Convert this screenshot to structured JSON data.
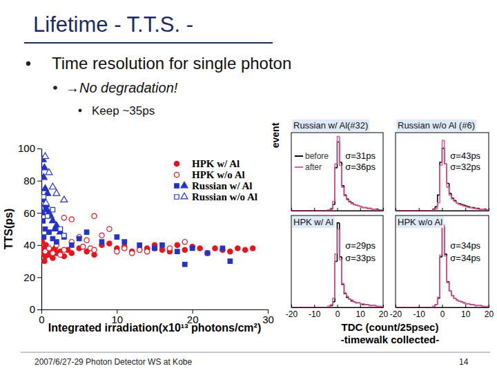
{
  "slide": {
    "title": "Lifetime - T.T.S. -",
    "bullets": [
      "Time resolution for single photon"
    ],
    "sub_bullets": [
      "→No degradation!"
    ],
    "sub_sub_bullets": [
      "Keep ~35ps"
    ],
    "footer": "2007/6/27-29 Photon Detector WS at Kobe",
    "page": 14
  },
  "histogram_axis": {
    "xlabel": "TDC (count/25psec)",
    "note": "-timewalk collected-"
  },
  "chart_data": [
    {
      "type": "scatter",
      "xlabel": "Integrated irradiation(x10¹³ photons/cm²)",
      "ylabel": "TTS(ps)",
      "xlim": [
        0,
        30
      ],
      "ylim": [
        0,
        100
      ],
      "xticks": [
        0,
        10,
        20,
        30
      ],
      "yticks": [
        0,
        20,
        40,
        60,
        80,
        100
      ],
      "grid": false,
      "legend": "upper right",
      "series": [
        {
          "name": "HPK w/ Al",
          "color": "#e8141e",
          "marker": "circle",
          "x": [
            0.1,
            0.2,
            0.3,
            0.4,
            0.5,
            0.6,
            0.8,
            1,
            1.2,
            1.5,
            1.8,
            2,
            2.5,
            3,
            3.5,
            4,
            5,
            6,
            7,
            8,
            9,
            10,
            11,
            12,
            13,
            14,
            15,
            16,
            17,
            18,
            19,
            20,
            21,
            22,
            23,
            24,
            25,
            26,
            27,
            28
          ],
          "values": [
            42,
            35,
            38,
            30,
            33,
            40,
            36,
            34,
            37,
            32,
            38,
            35,
            36,
            33,
            37,
            35,
            38,
            36,
            34,
            40,
            41,
            38,
            39,
            36,
            37,
            38,
            40,
            37,
            36,
            40,
            37,
            39,
            38,
            35,
            38,
            37,
            36,
            38,
            37,
            38
          ]
        },
        {
          "name": "HPK w/o Al",
          "color": "#e8141e",
          "marker": "circle-open",
          "x": [
            0.5,
            1,
            1.5,
            2,
            2.5,
            3,
            3,
            4,
            4,
            5,
            5.5,
            6,
            6.5,
            7,
            7,
            8,
            9,
            10,
            11,
            12,
            13,
            14,
            15,
            17,
            19
          ],
          "values": [
            36,
            38,
            35,
            40,
            34,
            37,
            57,
            42,
            56,
            45,
            39,
            43,
            38,
            37,
            58,
            46,
            50,
            36,
            38,
            35,
            37,
            36,
            38,
            38,
            42
          ]
        },
        {
          "name": "Russian w/ Al",
          "color": "#2233cc",
          "marker": "square",
          "x": [
            0.2,
            0.3,
            0.5,
            0.6,
            1,
            1.5,
            2,
            3,
            4,
            5,
            6,
            8,
            10,
            11,
            13,
            15,
            16,
            18,
            19,
            20,
            22,
            24,
            25
          ],
          "values": [
            55,
            45,
            50,
            62,
            48,
            44,
            42,
            45,
            40,
            44,
            48,
            42,
            45,
            42,
            40,
            38,
            40,
            36,
            28,
            38,
            35,
            38,
            30
          ]
        },
        {
          "name": "Russian w/ Al",
          "color": "#2233cc",
          "marker": "triangle",
          "x": [
            0.1,
            0.2,
            0.3,
            0.3,
            0.4,
            0.5,
            0.6,
            0.8,
            1,
            1.2,
            1.5,
            1.8,
            2,
            2.5
          ],
          "values": [
            60,
            93,
            82,
            68,
            88,
            75,
            65,
            72,
            60,
            58,
            55,
            50,
            52,
            48
          ]
        },
        {
          "name": "Russian w/o Al",
          "color": "#2233cc",
          "marker": "square-open",
          "x": [
            0.3,
            0.8,
            1.5,
            2.5,
            3
          ],
          "values": [
            70,
            58,
            62,
            50,
            46
          ]
        },
        {
          "name": "Russian w/o Al",
          "color": "#2233cc",
          "marker": "triangle-open",
          "x": [
            0.5,
            0.6,
            1,
            1.5,
            2,
            3
          ],
          "values": [
            95,
            66,
            85,
            76,
            72,
            68
          ]
        }
      ]
    },
    {
      "type": "histogram",
      "title": "Russian w/ Al(#32)",
      "ylabel": "event",
      "bins": [
        -20,
        -19,
        -18,
        -17,
        -16,
        -15,
        -14,
        -13,
        -12,
        -11,
        -10,
        -9,
        -8,
        -7,
        -6,
        -5,
        -4,
        -3,
        -2,
        -1,
        0,
        1,
        2,
        3,
        4,
        5,
        6,
        7,
        8,
        9,
        10,
        11,
        12,
        13,
        14,
        15,
        16,
        17,
        18,
        19,
        20
      ],
      "xlim": [
        -20,
        20
      ],
      "ylim": [
        0,
        100
      ],
      "xticks": [
        -20,
        -10,
        0,
        10,
        20
      ],
      "tick_labels": false,
      "legend": "upper left",
      "annotations": [
        "σ=31ps",
        "σ=36ps"
      ],
      "series": [
        {
          "name": "before",
          "color": "#000000",
          "values": [
            0,
            0,
            0,
            0,
            0,
            0,
            0,
            0,
            0,
            0,
            0,
            0,
            0,
            0,
            0,
            0,
            1,
            2,
            8,
            55,
            88,
            62,
            32,
            20,
            15,
            12,
            10,
            8,
            7,
            6,
            5,
            4,
            4,
            3,
            3,
            2,
            2,
            2,
            1,
            1
          ]
        },
        {
          "name": "after",
          "color": "#e8579b",
          "values": [
            0,
            0,
            0,
            0,
            0,
            0,
            0,
            0,
            0,
            0,
            0,
            0,
            0,
            0,
            0,
            0,
            1,
            3,
            12,
            60,
            95,
            58,
            30,
            19,
            14,
            11,
            9,
            8,
            7,
            6,
            5,
            4,
            4,
            3,
            3,
            2,
            2,
            1,
            1,
            1
          ]
        }
      ]
    },
    {
      "type": "histogram",
      "title": "Russian w/o Al (#6)",
      "bins": [
        -20,
        -19,
        -18,
        -17,
        -16,
        -15,
        -14,
        -13,
        -12,
        -11,
        -10,
        -9,
        -8,
        -7,
        -6,
        -5,
        -4,
        -3,
        -2,
        -1,
        0,
        1,
        2,
        3,
        4,
        5,
        6,
        7,
        8,
        9,
        10,
        11,
        12,
        13,
        14,
        15,
        16,
        17,
        18,
        19,
        20
      ],
      "xlim": [
        -20,
        20
      ],
      "ylim": [
        0,
        100
      ],
      "xticks": [
        -20,
        -10,
        0,
        10,
        20
      ],
      "tick_labels": false,
      "annotations": [
        "σ=43ps",
        "σ=32ps"
      ],
      "series": [
        {
          "color": "#000000",
          "values": [
            0,
            0,
            0,
            0,
            0,
            0,
            0,
            0,
            0,
            0,
            0,
            0,
            0,
            0,
            0,
            0,
            2,
            5,
            20,
            62,
            80,
            60,
            35,
            22,
            16,
            13,
            10,
            9,
            8,
            7,
            6,
            5,
            4,
            4,
            3,
            3,
            2,
            2,
            2,
            1
          ]
        },
        {
          "color": "#e8579b",
          "values": [
            0,
            0,
            0,
            0,
            0,
            0,
            0,
            0,
            0,
            0,
            0,
            0,
            0,
            0,
            0,
            0,
            1,
            2,
            10,
            58,
            90,
            60,
            30,
            20,
            15,
            12,
            10,
            8,
            7,
            6,
            5,
            4,
            4,
            3,
            3,
            2,
            2,
            2,
            1,
            1
          ]
        }
      ]
    },
    {
      "type": "histogram",
      "title": "HPK w/ Al",
      "bins": [
        -20,
        -19,
        -18,
        -17,
        -16,
        -15,
        -14,
        -13,
        -12,
        -11,
        -10,
        -9,
        -8,
        -7,
        -6,
        -5,
        -4,
        -3,
        -2,
        -1,
        0,
        1,
        2,
        3,
        4,
        5,
        6,
        7,
        8,
        9,
        10,
        11,
        12,
        13,
        14,
        15,
        16,
        17,
        18,
        19,
        20
      ],
      "xlim": [
        -20,
        20
      ],
      "ylim": [
        0,
        100
      ],
      "xticks": [
        -20,
        -10,
        0,
        10,
        20
      ],
      "tick_labels": "x",
      "annotations": [
        "σ=29ps",
        "σ=33ps"
      ],
      "series": [
        {
          "color": "#000000",
          "values": [
            0,
            0,
            0,
            0,
            0,
            0,
            0,
            0,
            0,
            0,
            0,
            0,
            0,
            0,
            0,
            0,
            1,
            2,
            6,
            50,
            92,
            55,
            25,
            15,
            11,
            9,
            7,
            6,
            5,
            5,
            4,
            3,
            3,
            3,
            2,
            2,
            2,
            1,
            1,
            1
          ]
        },
        {
          "color": "#e8579b",
          "values": [
            0,
            0,
            0,
            0,
            0,
            0,
            0,
            0,
            0,
            0,
            0,
            0,
            0,
            0,
            0,
            0,
            1,
            3,
            10,
            58,
            85,
            52,
            26,
            16,
            12,
            9,
            8,
            6,
            5,
            5,
            4,
            4,
            3,
            3,
            2,
            2,
            2,
            1,
            1,
            1
          ]
        }
      ]
    },
    {
      "type": "histogram",
      "title": "HPK w/o Al",
      "bins": [
        -20,
        -19,
        -18,
        -17,
        -16,
        -15,
        -14,
        -13,
        -12,
        -11,
        -10,
        -9,
        -8,
        -7,
        -6,
        -5,
        -4,
        -3,
        -2,
        -1,
        0,
        1,
        2,
        3,
        4,
        5,
        6,
        7,
        8,
        9,
        10,
        11,
        12,
        13,
        14,
        15,
        16,
        17,
        18,
        19,
        20
      ],
      "xlim": [
        -20,
        20
      ],
      "ylim": [
        0,
        100
      ],
      "xticks": [
        -20,
        -10,
        0,
        10,
        20
      ],
      "tick_labels": "x",
      "annotations": [
        "σ=34ps",
        "σ=34ps"
      ],
      "series": [
        {
          "color": "#000000",
          "values": [
            0,
            0,
            0,
            0,
            0,
            0,
            0,
            0,
            0,
            0,
            0,
            0,
            0,
            0,
            0,
            0,
            1,
            3,
            10,
            55,
            88,
            58,
            28,
            18,
            13,
            10,
            8,
            7,
            6,
            5,
            4,
            4,
            3,
            3,
            2,
            2,
            2,
            1,
            1,
            1
          ]
        },
        {
          "color": "#e8579b",
          "values": [
            0,
            0,
            0,
            0,
            0,
            0,
            0,
            0,
            0,
            0,
            0,
            0,
            0,
            0,
            0,
            0,
            1,
            3,
            11,
            57,
            90,
            56,
            27,
            18,
            13,
            10,
            8,
            7,
            6,
            5,
            4,
            4,
            3,
            3,
            2,
            2,
            2,
            1,
            1,
            1
          ]
        }
      ]
    }
  ]
}
